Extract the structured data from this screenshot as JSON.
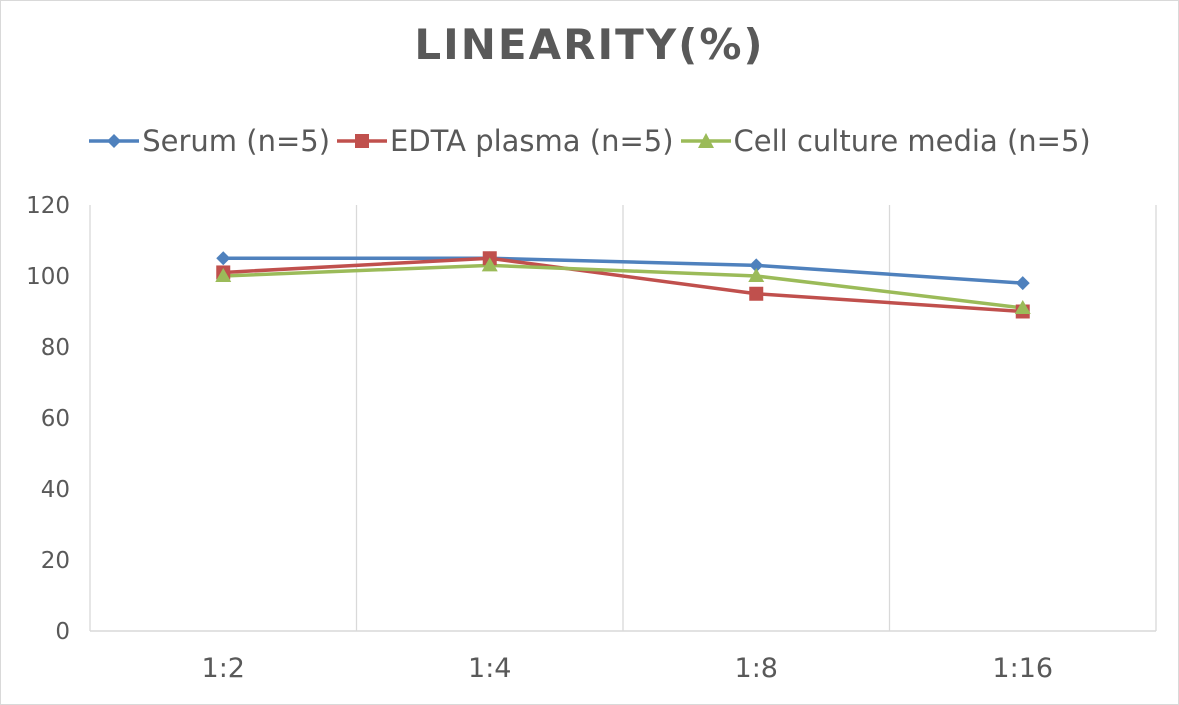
{
  "chart_data": {
    "type": "line",
    "title": "LINEARITY(%)",
    "xlabel": "",
    "ylabel": "",
    "categories": [
      "1:2",
      "1:4",
      "1:8",
      "1:16"
    ],
    "ylim": [
      0,
      120
    ],
    "yticks": [
      0,
      20,
      40,
      60,
      80,
      100,
      120
    ],
    "grid": "vertical",
    "legend_position": "top",
    "series": [
      {
        "name": "Serum (n=5)",
        "values": [
          105,
          105,
          103,
          98
        ],
        "color": "#4f81bd",
        "marker": "diamond"
      },
      {
        "name": "EDTA plasma (n=5)",
        "values": [
          101,
          105,
          95,
          90
        ],
        "color": "#c0504d",
        "marker": "square"
      },
      {
        "name": "Cell culture media (n=5)",
        "values": [
          100,
          103,
          100,
          91
        ],
        "color": "#9bbb59",
        "marker": "triangle"
      }
    ]
  }
}
